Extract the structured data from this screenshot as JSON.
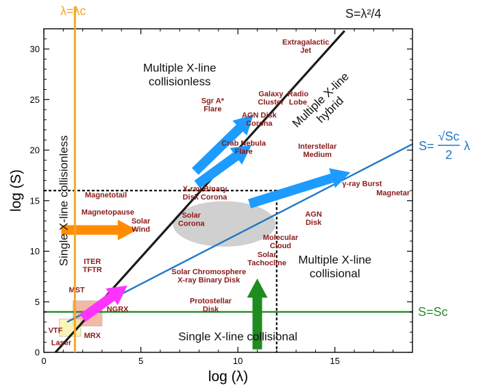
{
  "chart_data": {
    "type": "line",
    "title": "",
    "xlabel": "log (λ)",
    "ylabel": "log (S)",
    "xlim": [
      0,
      19
    ],
    "ylim": [
      0,
      32
    ],
    "xticks": [
      0,
      5,
      10,
      15
    ],
    "yticks": [
      0,
      5,
      10,
      15,
      20,
      25,
      30
    ],
    "grid": false,
    "colors": {
      "lambda_c_line": "#f5a623",
      "lambda_sq_line": "#1a1a1a",
      "sqrt_sc_line": "#1f77c4",
      "sc_line": "#2e8b2e",
      "object_labels": "#8b1a1a",
      "blue_arrows": "#1e9bff",
      "orange_arrow": "#ff8c00",
      "green_arrow": "#1e8c1e",
      "magenta_arrow": "#ff33ff",
      "solar_corona_blob": "#c8c8c8"
    },
    "series": [
      {
        "name": "S=λ²/4",
        "kind": "line",
        "x": [
          0.6,
          15.5
        ],
        "y": [
          0,
          31.8
        ]
      },
      {
        "name": "S=√Sc/2 λ",
        "kind": "line",
        "x": [
          1.2,
          19
        ],
        "y": [
          3,
          20.6
        ]
      },
      {
        "name": "S=Sc",
        "kind": "hline",
        "y": 4
      },
      {
        "name": "λ=λc",
        "kind": "vline",
        "x": 1.6
      }
    ],
    "line_labels": [
      {
        "text": "S=λ²/4",
        "color": "#1a1a1a"
      },
      {
        "text": "S=",
        "color": "#1f77c4",
        "frac_num": "√Sc",
        "frac_den": "2",
        "suffix": "λ"
      },
      {
        "text": "S=Sc",
        "color": "#2e8b2e"
      },
      {
        "text": "λ=λc",
        "color": "#f5a623"
      }
    ],
    "boundary_box": {
      "x": [
        0,
        12
      ],
      "y": [
        0,
        16
      ]
    },
    "regions": [
      {
        "lines": [
          "Multiple X-line",
          "collisionless"
        ],
        "x": 7,
        "y": 27.5,
        "rotate": false
      },
      {
        "lines": [
          "Single X-line collisionless"
        ],
        "x": 1.0,
        "y": 15,
        "rotate": true
      },
      {
        "lines": [
          "Multiple X-line",
          "hybrid"
        ],
        "x": 14.5,
        "y": 24.5,
        "rotate": true
      },
      {
        "lines": [
          "Multiple X-line",
          "collisional"
        ],
        "x": 15,
        "y": 8.5,
        "rotate": false
      },
      {
        "lines": [
          "Single X-line collisional"
        ],
        "x": 10,
        "y": 1.6,
        "rotate": false
      }
    ],
    "objects": [
      {
        "lines": [
          "Extragalactic",
          "Jet"
        ],
        "x": 13.5,
        "y": 30.3
      },
      {
        "lines": [
          "Galaxy",
          "Cluster"
        ],
        "x": 11.7,
        "y": 25.2
      },
      {
        "lines": [
          "Radio",
          "Lobe"
        ],
        "x": 13.1,
        "y": 25.2
      },
      {
        "lines": [
          "Sgr A*",
          "Flare"
        ],
        "x": 8.7,
        "y": 24.5
      },
      {
        "lines": [
          "AGN Disk",
          "Corona"
        ],
        "x": 11.1,
        "y": 23.1
      },
      {
        "lines": [
          "Crab Nebula",
          "Flare"
        ],
        "x": 10.3,
        "y": 20.3
      },
      {
        "lines": [
          "Interstellar",
          "Medium"
        ],
        "x": 14.1,
        "y": 20.0
      },
      {
        "lines": [
          "γ-ray Burst"
        ],
        "x": 16.4,
        "y": 16.7
      },
      {
        "lines": [
          "Magnetar"
        ],
        "x": 18.0,
        "y": 15.8
      },
      {
        "lines": [
          "X-ray Binary",
          "Disk Corona"
        ],
        "x": 8.3,
        "y": 15.8
      },
      {
        "lines": [
          "Magnetotail"
        ],
        "x": 3.2,
        "y": 15.6
      },
      {
        "lines": [
          "Magnetopause"
        ],
        "x": 3.3,
        "y": 13.9
      },
      {
        "lines": [
          "Solar",
          "Wind"
        ],
        "x": 5.0,
        "y": 12.6
      },
      {
        "lines": [
          "Solar",
          "Corona"
        ],
        "x": 7.6,
        "y": 13.2
      },
      {
        "lines": [
          "AGN",
          "Disk"
        ],
        "x": 13.9,
        "y": 13.3
      },
      {
        "lines": [
          "Molecular",
          "Cloud"
        ],
        "x": 12.2,
        "y": 11.0
      },
      {
        "lines": [
          "Solar",
          "Tachocline"
        ],
        "x": 11.5,
        "y": 9.3
      },
      {
        "lines": [
          "ITER",
          "TFTR"
        ],
        "x": 2.5,
        "y": 8.6
      },
      {
        "lines": [
          "Solar Chromosphere",
          "X-ray Binary Disk"
        ],
        "x": 8.5,
        "y": 7.6
      },
      {
        "lines": [
          "MST"
        ],
        "x": 1.7,
        "y": 6.2
      },
      {
        "lines": [
          "Protostellar",
          "Disk"
        ],
        "x": 8.6,
        "y": 4.7
      },
      {
        "lines": [
          "NGRX"
        ],
        "x": 3.8,
        "y": 4.3
      },
      {
        "lines": [
          "VTF"
        ],
        "x": 0.6,
        "y": 2.2
      },
      {
        "lines": [
          "MRX"
        ],
        "x": 2.5,
        "y": 1.7
      },
      {
        "lines": [
          "Laser"
        ],
        "x": 0.9,
        "y": 1.0
      }
    ],
    "arrows": [
      {
        "color": "#1e9bff",
        "from": [
          7.8,
          17.9
        ],
        "to": [
          10.8,
          23.5
        ]
      },
      {
        "color": "#1e9bff",
        "from": [
          7.9,
          16.6
        ],
        "to": [
          10.7,
          20.5
        ]
      },
      {
        "color": "#1e9bff",
        "from": [
          10.6,
          14.7
        ],
        "to": [
          15.8,
          17.8
        ]
      },
      {
        "color": "#ff8c00",
        "from": [
          0.9,
          12.1
        ],
        "to": [
          4.8,
          12.1
        ]
      },
      {
        "color": "#1e8c1e",
        "from": [
          11.0,
          0.3
        ],
        "to": [
          11.0,
          7.3
        ]
      },
      {
        "color": "#ff33ff",
        "from": [
          2.0,
          3.4
        ],
        "to": [
          4.3,
          6.6
        ]
      }
    ],
    "blob": {
      "cx": 9.3,
      "cy": 12.7,
      "rx": 2.65,
      "ry": 2.25,
      "color": "#c8c8c8"
    },
    "small_boxes": [
      {
        "x": [
          1.5,
          3.0
        ],
        "y": [
          2.6,
          5.1
        ],
        "color": "#f2a08a"
      },
      {
        "x": [
          0.8,
          1.9
        ],
        "y": [
          1.6,
          3.3
        ],
        "color": "#f7f0a0"
      }
    ]
  }
}
